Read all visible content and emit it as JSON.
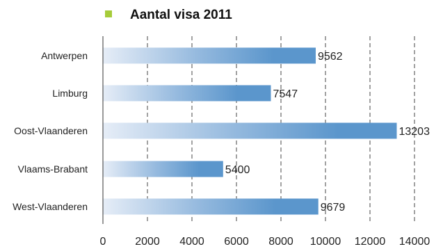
{
  "chart_data": {
    "type": "bar",
    "orientation": "horizontal",
    "categories": [
      "Antwerpen",
      "Limburg",
      "Oost-Vlaanderen",
      "Vlaams-Brabant",
      "West-Vlaanderen"
    ],
    "series": [
      {
        "name": "Aantal visa 2011",
        "values": [
          9562,
          7547,
          13203,
          5400,
          9679
        ],
        "color": "#5b96cc"
      }
    ],
    "value_labels": [
      "9562",
      "7547",
      "13203",
      "5400",
      "9679"
    ],
    "xlim": [
      0,
      14000
    ],
    "xticks": [
      0,
      2000,
      4000,
      6000,
      8000,
      10000,
      12000,
      14000
    ],
    "xtick_labels": [
      "0",
      "2000",
      "4000",
      "6000",
      "8000",
      "10000",
      "12000",
      "14000"
    ],
    "grid": "vertical dashed",
    "legend": {
      "position": "top",
      "label": "Aantal visa 2011",
      "marker_color": "#a6cc3a"
    }
  }
}
